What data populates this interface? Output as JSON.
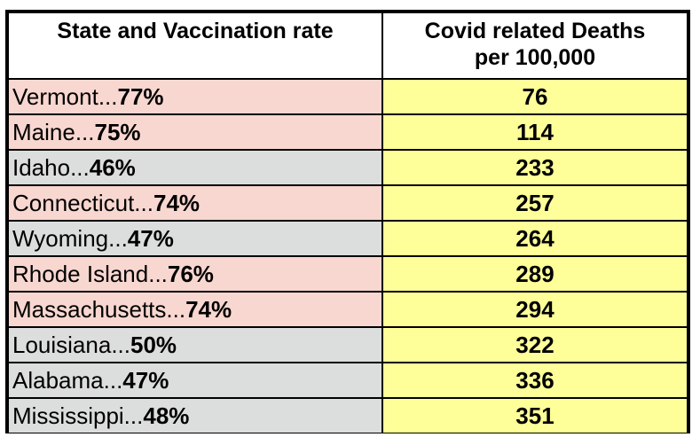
{
  "table": {
    "headers": [
      "State and Vaccination rate",
      "Covid related Deaths per 100,000"
    ],
    "header_2_lines": [
      "Covid related Deaths",
      "per 100,000"
    ],
    "colors": {
      "high_vaccination": "#f8d7d0",
      "low_vaccination": "#dcdddd",
      "deaths_column": "#ffff99"
    },
    "rows": [
      {
        "state": "Vermont...",
        "rate": "77%",
        "deaths": "76",
        "group": "pink"
      },
      {
        "state": "Maine...",
        "rate": "75%",
        "deaths": "114",
        "group": "pink"
      },
      {
        "state": "Idaho...",
        "rate": "46%",
        "deaths": "233",
        "group": "grey"
      },
      {
        "state": "Connecticut...",
        "rate": "74%",
        "deaths": "257",
        "group": "pink"
      },
      {
        "state": "Wyoming...",
        "rate": "47%",
        "deaths": "264",
        "group": "grey"
      },
      {
        "state": "Rhode Island...",
        "rate": "76%",
        "deaths": "289",
        "group": "pink"
      },
      {
        "state": "Massachusetts...",
        "rate": "74%",
        "deaths": "294",
        "group": "pink"
      },
      {
        "state": "Louisiana...",
        "rate": "50%",
        "deaths": "322",
        "group": "grey"
      },
      {
        "state": "Alabama...",
        "rate": "47%",
        "deaths": "336",
        "group": "grey"
      },
      {
        "state": "Mississippi...",
        "rate": "48%",
        "deaths": "351",
        "group": "grey"
      }
    ]
  }
}
